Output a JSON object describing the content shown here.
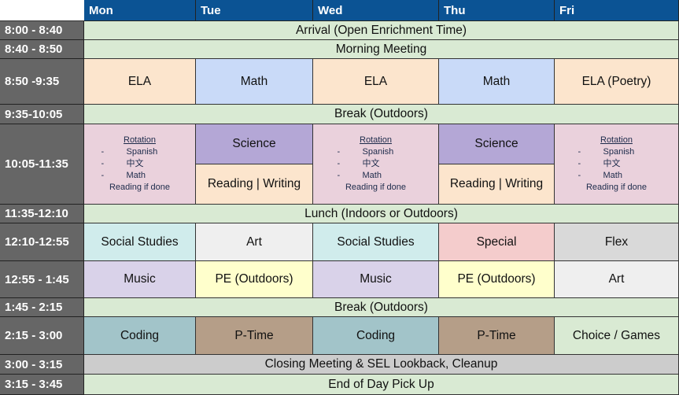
{
  "days": [
    "Mon",
    "Tue",
    "Wed",
    "Thu",
    "Fri"
  ],
  "colors": {
    "header": "#0b5394",
    "time": "#666666"
  },
  "rows": [
    {
      "time": "8:00 - 8:40",
      "cells": [
        {
          "label": "Arrival (Open Enrichment Time)",
          "span": 5,
          "color": "#d9ead3"
        }
      ]
    },
    {
      "time": "8:40 - 8:50",
      "cells": [
        {
          "label": "Morning Meeting",
          "span": 5,
          "color": "#d9ead3"
        }
      ]
    },
    {
      "time": "8:50 -9:35",
      "cells": [
        {
          "label": "ELA",
          "color": "#fce5cd"
        },
        {
          "label": "Math",
          "color": "#c9daf8"
        },
        {
          "label": "ELA",
          "color": "#fce5cd"
        },
        {
          "label": "Math",
          "color": "#c9daf8"
        },
        {
          "label": "ELA (Poetry)",
          "color": "#fce5cd"
        }
      ]
    },
    {
      "time": "9:35-10:05",
      "cells": [
        {
          "label": "Break (Outdoors)",
          "span": 5,
          "color": "#d9ead3"
        }
      ]
    },
    {
      "time": "10:05-11:35",
      "double": true,
      "cells": [
        {
          "rotation": true,
          "title": "Rotation",
          "items": [
            "Spanish",
            "中文",
            "Math"
          ],
          "footer": "Reading if done",
          "color": "#ead1dc"
        },
        {
          "top": "Science",
          "topColor": "#b4a7d6",
          "bottom": "Reading | Writing",
          "bottomColor": "#fce5cd"
        },
        {
          "rotation": true,
          "title": "Rotation",
          "items": [
            "Spanish",
            "中文",
            "Math"
          ],
          "footer": "Reading if done",
          "color": "#ead1dc"
        },
        {
          "top": "Science",
          "topColor": "#b4a7d6",
          "bottom": "Reading | Writing",
          "bottomColor": "#fce5cd"
        },
        {
          "rotation": true,
          "title": "Rotation",
          "items": [
            "Spanish",
            "中文",
            "Math"
          ],
          "footer": "Reading if done",
          "color": "#ead1dc"
        }
      ]
    },
    {
      "time": "11:35-12:10",
      "cells": [
        {
          "label": "Lunch (Indoors or Outdoors)",
          "span": 5,
          "color": "#d9ead3"
        }
      ]
    },
    {
      "time": "12:10-12:55",
      "cells": [
        {
          "label": "Social Studies",
          "color": "#d0ecec"
        },
        {
          "label": "Art",
          "color": "#efefef"
        },
        {
          "label": "Social Studies",
          "color": "#d0ecec"
        },
        {
          "label": "Special",
          "color": "#f4cccc"
        },
        {
          "label": "Flex",
          "color": "#d9d9d9"
        }
      ]
    },
    {
      "time": "12:55 - 1:45",
      "cells": [
        {
          "label": "Music",
          "color": "#d9d2e9"
        },
        {
          "label": "PE (Outdoors)",
          "color": "#ffffcc"
        },
        {
          "label": "Music",
          "color": "#d9d2e9"
        },
        {
          "label": "PE (Outdoors)",
          "color": "#ffffcc"
        },
        {
          "label": "Art",
          "color": "#efefef"
        }
      ]
    },
    {
      "time": "1:45 - 2:15",
      "cells": [
        {
          "label": "Break (Outdoors)",
          "span": 5,
          "color": "#d9ead3"
        }
      ]
    },
    {
      "time": "2:15 - 3:00",
      "cells": [
        {
          "label": "Coding",
          "color": "#a2c4c9"
        },
        {
          "label": "P-Time",
          "color": "#b59e88"
        },
        {
          "label": "Coding",
          "color": "#a2c4c9"
        },
        {
          "label": "P-Time",
          "color": "#b59e88"
        },
        {
          "label": "Choice /  Games",
          "color": "#d9ead3"
        }
      ]
    },
    {
      "time": "3:00 - 3:15",
      "cells": [
        {
          "label": "Closing Meeting & SEL Lookback, Cleanup",
          "span": 5,
          "color": "#cccccc"
        }
      ]
    },
    {
      "time": "3:15 - 3:45",
      "cells": [
        {
          "label": "End of Day Pick Up",
          "span": 5,
          "color": "#d9ead3"
        }
      ]
    }
  ]
}
